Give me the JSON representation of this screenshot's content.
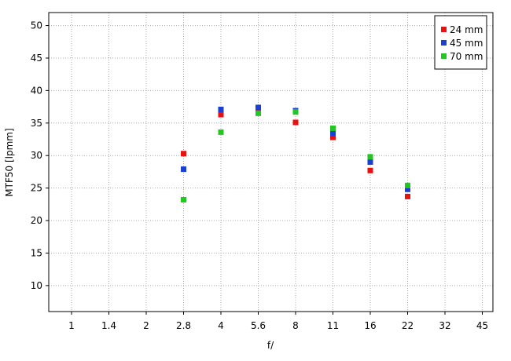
{
  "chart_data": {
    "type": "scatter",
    "title": "",
    "xlabel": "f/",
    "ylabel": "MTF50 [lpmm]",
    "x_scale": "log2",
    "x_ticks": [
      "1",
      "1.4",
      "2",
      "2.8",
      "4",
      "5.6",
      "8",
      "11",
      "16",
      "22",
      "32",
      "45"
    ],
    "ylim": [
      6,
      52
    ],
    "y_ticks": [
      10,
      15,
      20,
      25,
      30,
      35,
      40,
      45,
      50
    ],
    "grid": true,
    "legend_position": "top-right",
    "series": [
      {
        "name": "24 mm",
        "color": "#e81010",
        "points": [
          {
            "x": "2.8",
            "y": 30.3
          },
          {
            "x": "4",
            "y": 36.3
          },
          {
            "x": "5.6",
            "y": 37.0
          },
          {
            "x": "8",
            "y": 35.1
          },
          {
            "x": "11",
            "y": 32.8
          },
          {
            "x": "16",
            "y": 27.7
          },
          {
            "x": "22",
            "y": 23.7
          }
        ]
      },
      {
        "name": "45 mm",
        "color": "#1a3fd6",
        "points": [
          {
            "x": "2.8",
            "y": 27.9
          },
          {
            "x": "4",
            "y": 37.1
          },
          {
            "x": "5.6",
            "y": 37.4
          },
          {
            "x": "8",
            "y": 36.9
          },
          {
            "x": "11",
            "y": 33.4
          },
          {
            "x": "16",
            "y": 29.0
          },
          {
            "x": "22",
            "y": 24.8
          }
        ]
      },
      {
        "name": "70 mm",
        "color": "#22c722",
        "points": [
          {
            "x": "2.8",
            "y": 23.2
          },
          {
            "x": "4",
            "y": 33.6
          },
          {
            "x": "5.6",
            "y": 36.5
          },
          {
            "x": "8",
            "y": 36.7
          },
          {
            "x": "11",
            "y": 34.2
          },
          {
            "x": "16",
            "y": 29.8
          },
          {
            "x": "22",
            "y": 25.4
          }
        ]
      }
    ]
  }
}
